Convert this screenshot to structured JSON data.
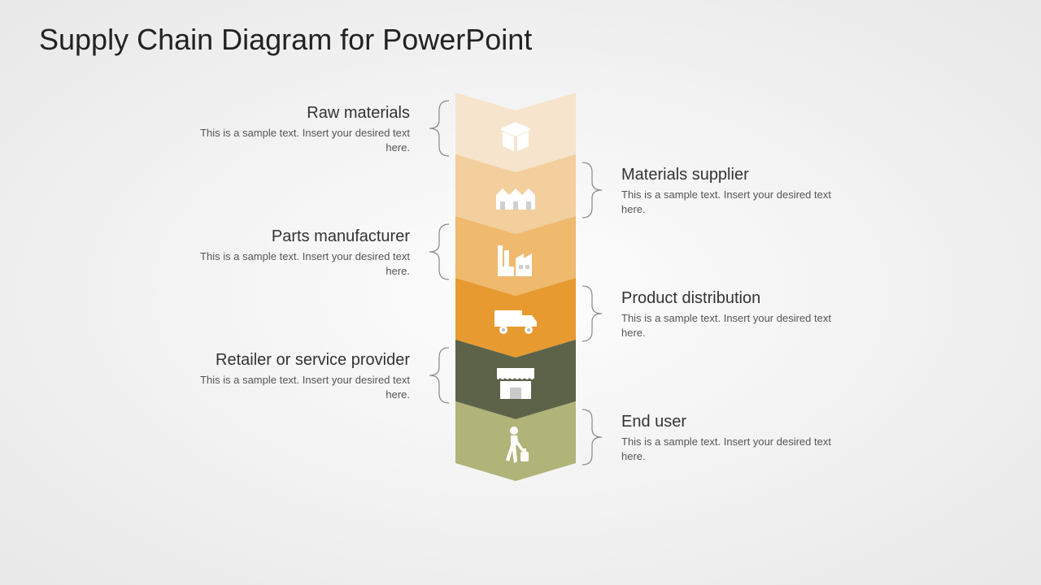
{
  "title": "Supply Chain Diagram for PowerPoint",
  "chevron_width": 148,
  "chevron_height": 98,
  "chevron_notch": 22,
  "steps": [
    {
      "name": "raw-materials",
      "title": "Raw materials",
      "desc": "This is a sample text. Insert your desired text here.",
      "color": "#f6e4cc",
      "icon": "box",
      "side": "left"
    },
    {
      "name": "materials-supplier",
      "title": "Materials supplier",
      "desc": "This is a sample text. Insert your desired text here.",
      "color": "#f2cf9d",
      "icon": "warehouse",
      "side": "right"
    },
    {
      "name": "parts-manufacturer",
      "title": "Parts manufacturer",
      "desc": "This is a sample text. Insert your desired text here.",
      "color": "#efb96e",
      "icon": "factory",
      "side": "left"
    },
    {
      "name": "product-distribution",
      "title": "Product distribution",
      "desc": "This is a sample text. Insert your desired text here.",
      "color": "#e79a2f",
      "icon": "truck",
      "side": "right"
    },
    {
      "name": "retailer",
      "title": "Retailer or service provider",
      "desc": "This is a sample text. Insert your desired text here.",
      "color": "#5c6349",
      "icon": "shop",
      "side": "left"
    },
    {
      "name": "end-user",
      "title": "End user",
      "desc": "This is a sample text. Insert your desired text here.",
      "color": "#b0b479",
      "icon": "person",
      "side": "right"
    }
  ],
  "bracket_color": "#888888",
  "background": "#f2f2f2",
  "text_color": "#333333"
}
